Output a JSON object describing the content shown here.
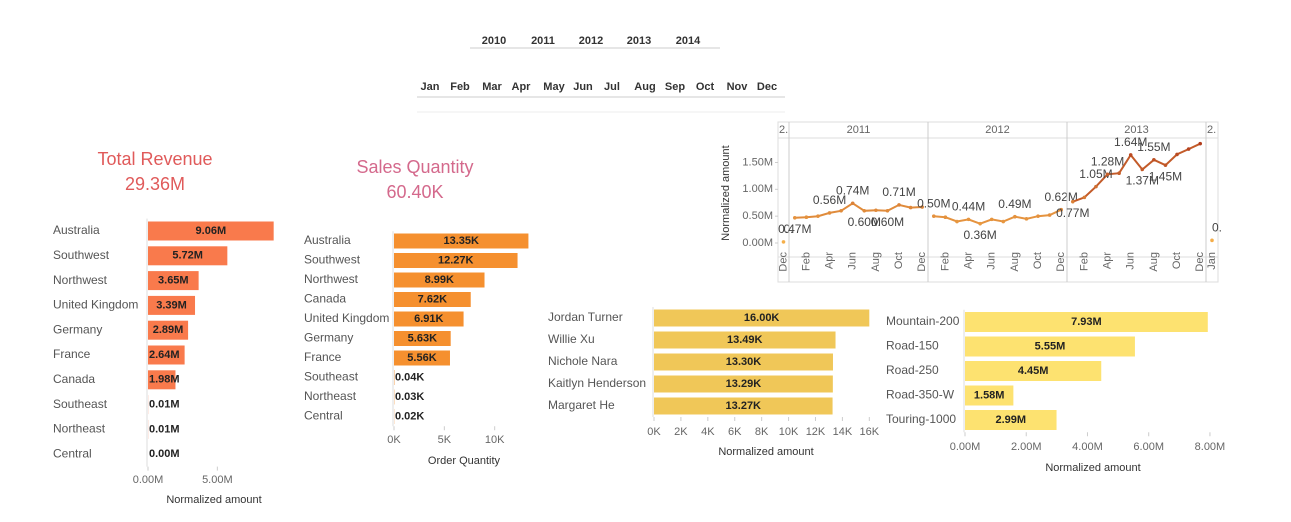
{
  "filters": {
    "years": [
      "2010",
      "2011",
      "2012",
      "2013",
      "2014"
    ],
    "months": [
      "Jan",
      "Feb",
      "Mar",
      "Apr",
      "May",
      "Jun",
      "Jul",
      "Aug",
      "Sep",
      "Oct",
      "Nov",
      "Dec"
    ]
  },
  "kpis": [
    {
      "title": "Total Revenue",
      "value": "29.36M",
      "color": "#e05a5a"
    },
    {
      "title": "Sales Quantity",
      "value": "60.40K",
      "color": "#d4698c"
    }
  ],
  "chart_data": [
    {
      "type": "hbar",
      "categories": [
        "Australia",
        "Southwest",
        "Northwest",
        "United Kingdom",
        "Germany",
        "France",
        "Canada",
        "Southeast",
        "Northeast",
        "Central"
      ],
      "values": [
        9.06,
        5.72,
        3.65,
        3.39,
        2.89,
        2.64,
        1.98,
        0.01,
        0.01,
        0.0
      ],
      "value_labels": [
        "9.06M",
        "5.72M",
        "3.65M",
        "3.39M",
        "2.89M",
        "2.64M",
        "1.98M",
        "0.01M",
        "0.01M",
        "0.00M"
      ],
      "color": "#f97a4c",
      "xlim": [
        0,
        9.3
      ],
      "xticks": [
        {
          "value": 0,
          "label": "0.00M"
        },
        {
          "value": 5,
          "label": "5.00M"
        }
      ],
      "xlabel": "Normalized amount"
    },
    {
      "type": "hbar",
      "categories": [
        "Australia",
        "Southwest",
        "Northwest",
        "Canada",
        "United Kingdom",
        "Germany",
        "France",
        "Southeast",
        "Northeast",
        "Central"
      ],
      "values": [
        13.35,
        12.27,
        8.99,
        7.62,
        6.91,
        5.63,
        5.56,
        0.04,
        0.03,
        0.02
      ],
      "value_labels": [
        "13.35K",
        "12.27K",
        "8.99K",
        "7.62K",
        "6.91K",
        "5.63K",
        "5.56K",
        "0.04K",
        "0.03K",
        "0.02K"
      ],
      "color": "#f5902f",
      "xlim": [
        0,
        14.5
      ],
      "xticks": [
        {
          "value": 0,
          "label": "0K"
        },
        {
          "value": 5,
          "label": "5K"
        },
        {
          "value": 10,
          "label": "10K"
        }
      ],
      "xlabel": "Order Quantity"
    },
    {
      "type": "line",
      "ylabel": "Normalized amount",
      "ylim": [
        0,
        1.9
      ],
      "yticks": [
        {
          "value": 0,
          "label": "0.00M"
        },
        {
          "value": 0.5,
          "label": "0.50M"
        },
        {
          "value": 1,
          "label": "1.00M"
        },
        {
          "value": 1.5,
          "label": "1.50M"
        }
      ],
      "colors": [
        "#f6b04a",
        "#b03a1c"
      ],
      "panes": [
        {
          "label": "2.",
          "x": [
            "Dec"
          ],
          "values": [
            0.02
          ],
          "value_labels": [
            "0."
          ]
        },
        {
          "label": "2011",
          "x": [
            null,
            "Feb",
            null,
            "Apr",
            null,
            "Jun",
            null,
            "Aug",
            null,
            "Oct",
            null,
            "Dec"
          ],
          "values": [
            0.47,
            0.48,
            0.5,
            0.56,
            0.6,
            0.74,
            0.6,
            0.61,
            0.6,
            0.71,
            0.66,
            0.67
          ],
          "value_labels": [
            "0.47M",
            null,
            null,
            "0.56M",
            null,
            "0.74M",
            "0.60M",
            null,
            "0.60M",
            "0.71M",
            null,
            null
          ]
        },
        {
          "label": "2012",
          "x": [
            null,
            "Feb",
            null,
            "Apr",
            null,
            "Jun",
            null,
            "Aug",
            null,
            "Oct",
            null,
            "Dec"
          ],
          "values": [
            0.5,
            0.48,
            0.4,
            0.44,
            0.36,
            0.44,
            0.4,
            0.49,
            0.45,
            0.5,
            0.52,
            0.62
          ],
          "value_labels": [
            "0.50M",
            null,
            null,
            "0.44M",
            "0.36M",
            null,
            null,
            "0.49M",
            null,
            null,
            null,
            "0.62M"
          ]
        },
        {
          "label": "2013",
          "x": [
            null,
            "Feb",
            null,
            "Apr",
            null,
            "Jun",
            null,
            "Aug",
            null,
            "Oct",
            null,
            "Dec"
          ],
          "values": [
            0.77,
            0.85,
            1.05,
            1.28,
            1.3,
            1.64,
            1.37,
            1.55,
            1.45,
            1.65,
            1.75,
            1.85
          ],
          "value_labels": [
            "0.77M",
            null,
            "1.05M",
            "1.28M",
            null,
            "1.64M",
            "1.37M",
            "1.55M",
            "1.45M",
            null,
            null,
            null
          ]
        },
        {
          "label": "2.",
          "x": [
            "Jan"
          ],
          "values": [
            0.05
          ],
          "value_labels": [
            "0."
          ]
        }
      ]
    },
    {
      "type": "hbar",
      "categories": [
        "Jordan Turner",
        "Willie Xu",
        "Nichole Nara",
        "Kaitlyn Henderson",
        "Margaret He"
      ],
      "values": [
        16.0,
        13.49,
        13.3,
        13.29,
        13.27
      ],
      "value_labels": [
        "16.00K",
        "13.49K",
        "13.30K",
        "13.29K",
        "13.27K"
      ],
      "color": "#f0c758",
      "xlim": [
        0,
        16.2
      ],
      "xticks": [
        {
          "value": 0,
          "label": "0K"
        },
        {
          "value": 2,
          "label": "2K"
        },
        {
          "value": 4,
          "label": "4K"
        },
        {
          "value": 6,
          "label": "6K"
        },
        {
          "value": 8,
          "label": "8K"
        },
        {
          "value": 10,
          "label": "10K"
        },
        {
          "value": 12,
          "label": "12K"
        },
        {
          "value": 14,
          "label": "14K"
        },
        {
          "value": 16,
          "label": "16K"
        }
      ],
      "xlabel": "Normalized amount"
    },
    {
      "type": "hbar",
      "categories": [
        "Mountain-200",
        "Road-150",
        "Road-250",
        "Road-350-W",
        "Touring-1000"
      ],
      "values": [
        7.93,
        5.55,
        4.45,
        1.58,
        2.99
      ],
      "value_labels": [
        "7.93M",
        "5.55M",
        "4.45M",
        "1.58M",
        "2.99M"
      ],
      "color": "#fde270",
      "xlim": [
        0,
        8.1
      ],
      "xticks": [
        {
          "value": 0,
          "label": "0.00M"
        },
        {
          "value": 2,
          "label": "2.00M"
        },
        {
          "value": 4,
          "label": "4.00M"
        },
        {
          "value": 6,
          "label": "6.00M"
        },
        {
          "value": 8,
          "label": "8.00M"
        }
      ],
      "xlabel": "Normalized amount"
    }
  ]
}
